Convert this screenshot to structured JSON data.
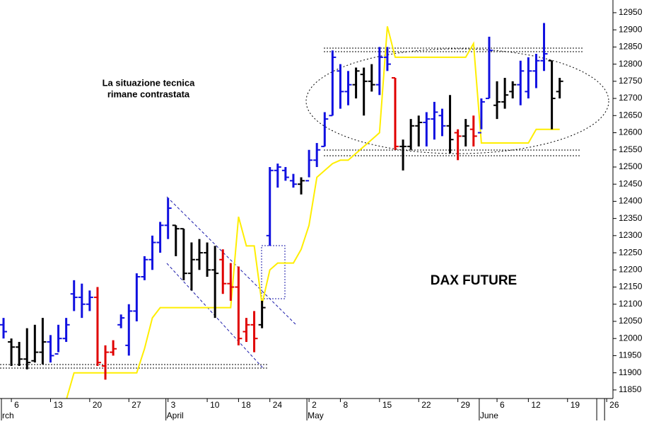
{
  "chart_data": {
    "type": "ohlc",
    "title": "DAX FUTURE",
    "annotation_lines": [
      "La situazione tecnica",
      "rimane contrastata"
    ],
    "categories": [
      null,
      "6",
      null,
      null,
      null,
      null,
      "13",
      null,
      null,
      null,
      null,
      "20",
      null,
      null,
      null,
      null,
      "27",
      null,
      null,
      null,
      null,
      "3",
      null,
      null,
      null,
      null,
      "10",
      null,
      null,
      null,
      "18",
      null,
      null,
      null,
      "24",
      null,
      null,
      null,
      null,
      "2",
      null,
      null,
      null,
      "8",
      null,
      null,
      null,
      null,
      "15",
      null,
      null,
      null,
      null,
      "22",
      null,
      null,
      null,
      null,
      "29",
      null,
      null,
      null,
      null,
      "6",
      null,
      null,
      null,
      "12",
      null,
      null,
      null,
      null,
      "19",
      null,
      null,
      null,
      null,
      "26"
    ],
    "months": [
      "rch",
      null,
      null,
      null,
      null,
      null,
      null,
      null,
      null,
      null,
      null,
      null,
      null,
      null,
      null,
      null,
      null,
      null,
      null,
      null,
      null,
      "April",
      null,
      null,
      null,
      null,
      null,
      null,
      null,
      null,
      null,
      null,
      null,
      null,
      null,
      null,
      null,
      null,
      null,
      "May",
      null,
      null,
      null,
      null,
      null,
      null,
      null,
      null,
      null,
      null,
      null,
      null,
      null,
      null,
      null,
      null,
      null,
      null,
      null,
      null,
      null,
      "June",
      null,
      null,
      null,
      null,
      null,
      null,
      null,
      null,
      null,
      null,
      null,
      null,
      null,
      null
    ],
    "open": [
      12040,
      11990,
      11975,
      11940,
      11935,
      11960,
      11990,
      11955,
      12000,
      12130,
      12120,
      12100,
      12120,
      11920,
      11960,
      12040,
      11980,
      12080,
      12180,
      12230,
      12280,
      12330,
      12330,
      12320,
      12190,
      12230,
      12250,
      12200,
      12230,
      12160,
      12150,
      12020,
      12040,
      12040,
      12300,
      12490,
      12490,
      12460,
      12450,
      12460,
      12520,
      12560,
      12650,
      12780,
      12720,
      12740,
      12770,
      12750,
      12740,
      12820,
      12760,
      12560,
      12560,
      12620,
      12630,
      12640,
      12650,
      12620,
      12600,
      12590,
      12610,
      12600,
      12700,
      12680,
      12690,
      12720,
      12740,
      12720,
      12780,
      12810,
      12810,
      12720,
      null,
      null,
      null,
      null,
      null,
      null
    ],
    "high": [
      12060,
      12000,
      11990,
      12030,
      12040,
      12060,
      12010,
      12040,
      12060,
      12170,
      12160,
      12140,
      12150,
      11980,
      11995,
      12070,
      12100,
      12190,
      12240,
      12300,
      12340,
      12410,
      12330,
      12320,
      12280,
      12290,
      12280,
      12270,
      12260,
      12220,
      12210,
      12060,
      12080,
      12110,
      12500,
      12510,
      12500,
      12480,
      12470,
      12550,
      12570,
      12660,
      12840,
      12800,
      12780,
      12790,
      12790,
      12800,
      12850,
      12850,
      12760,
      12580,
      12640,
      12650,
      12660,
      12690,
      12670,
      12710,
      12610,
      12640,
      12650,
      12700,
      12880,
      12750,
      12760,
      12750,
      12810,
      12820,
      12830,
      12920,
      12810,
      12760,
      null,
      null,
      null,
      null,
      null,
      null
    ],
    "low": [
      12000,
      11920,
      11920,
      11910,
      11930,
      11925,
      11930,
      11960,
      11990,
      12080,
      12060,
      12080,
      11920,
      11880,
      11950,
      12030,
      11950,
      12050,
      12170,
      12200,
      12250,
      12290,
      12240,
      12170,
      12140,
      12200,
      12180,
      12060,
      12130,
      12110,
      11980,
      11990,
      11960,
      12030,
      12270,
      12440,
      12460,
      12440,
      12420,
      12470,
      12500,
      12560,
      12650,
      12670,
      12680,
      12700,
      12650,
      12720,
      12710,
      12780,
      12550,
      12490,
      12550,
      12560,
      12560,
      12580,
      12590,
      12540,
      12520,
      12560,
      12560,
      12610,
      12700,
      12640,
      12670,
      12700,
      12680,
      12700,
      12730,
      12780,
      12610,
      12700,
      null,
      null,
      null,
      null,
      null,
      null
    ],
    "close": [
      12020,
      11975,
      11940,
      11930,
      11960,
      11990,
      11950,
      12000,
      12040,
      12120,
      12100,
      12120,
      11930,
      11960,
      11970,
      12060,
      12080,
      12180,
      12230,
      12280,
      12330,
      12380,
      12320,
      12190,
      12230,
      12250,
      12200,
      12190,
      12160,
      12150,
      12000,
      12040,
      12000,
      12090,
      12490,
      12500,
      12470,
      12450,
      12460,
      12520,
      12550,
      12640,
      12820,
      12720,
      12740,
      12780,
      12750,
      12740,
      12820,
      12800,
      12560,
      12560,
      12620,
      12630,
      12640,
      12660,
      12620,
      12580,
      12590,
      12620,
      12590,
      12690,
      12840,
      12690,
      12710,
      12740,
      12780,
      12780,
      12810,
      12830,
      12700,
      12750,
      null,
      null,
      null,
      null,
      null,
      null
    ],
    "bar_colors": [
      "#1010e0",
      "#000000",
      "#000000",
      "#000000",
      "#000000",
      "#000000",
      "#1010e0",
      "#1010e0",
      "#1010e0",
      "#1010e0",
      "#1010e0",
      "#1010e0",
      "#e00000",
      "#e00000",
      "#e00000",
      "#1010e0",
      "#1010e0",
      "#1010e0",
      "#1010e0",
      "#1010e0",
      "#1010e0",
      "#1010e0",
      "#000000",
      "#000000",
      "#000000",
      "#000000",
      "#000000",
      "#000000",
      "#e00000",
      "#e00000",
      "#e00000",
      "#e00000",
      "#e00000",
      "#000000",
      "#1010e0",
      "#1010e0",
      "#1010e0",
      "#1010e0",
      "#000000",
      "#1010e0",
      "#1010e0",
      "#1010e0",
      "#1010e0",
      "#1010e0",
      "#1010e0",
      "#000000",
      "#000000",
      "#000000",
      "#1010e0",
      "#1010e0",
      "#e00000",
      "#000000",
      "#000000",
      "#000000",
      "#1010e0",
      "#1010e0",
      "#1010e0",
      "#000000",
      "#e00000",
      "#000000",
      "#e00000",
      "#1010e0",
      "#1010e0",
      "#000000",
      "#000000",
      "#000000",
      "#1010e0",
      "#1010e0",
      "#1010e0",
      "#1010e0",
      "#000000",
      "#000000",
      null,
      null,
      null,
      null,
      null,
      null
    ],
    "indicator": {
      "color": "#ffee00",
      "values": [
        null,
        null,
        null,
        null,
        null,
        null,
        null,
        null,
        11820,
        11900,
        11900,
        11900,
        11900,
        11900,
        11900,
        11900,
        11900,
        11900,
        11970,
        12060,
        12090,
        12090,
        12090,
        12090,
        12090,
        12090,
        12090,
        12090,
        12090,
        12090,
        12355,
        12270,
        12270,
        12100,
        12200,
        12220,
        12220,
        12220,
        12260,
        12330,
        12470,
        12490,
        12510,
        12520,
        12520,
        12540,
        12560,
        12580,
        12600,
        12910,
        12820,
        12820,
        12820,
        12820,
        12820,
        12820,
        12820,
        12820,
        12820,
        12820,
        12860,
        12570,
        12570,
        12570,
        12570,
        12570,
        12570,
        12570,
        12610,
        12610,
        12610,
        12610,
        null,
        null,
        null,
        null,
        null,
        null
      ]
    },
    "ylim": [
      11825,
      12987
    ],
    "yticks": [
      11850,
      11900,
      11950,
      12000,
      12050,
      12100,
      12150,
      12200,
      12250,
      12300,
      12350,
      12400,
      12450,
      12500,
      12550,
      12600,
      12650,
      12700,
      12750,
      12800,
      12850,
      12900,
      12950
    ]
  }
}
